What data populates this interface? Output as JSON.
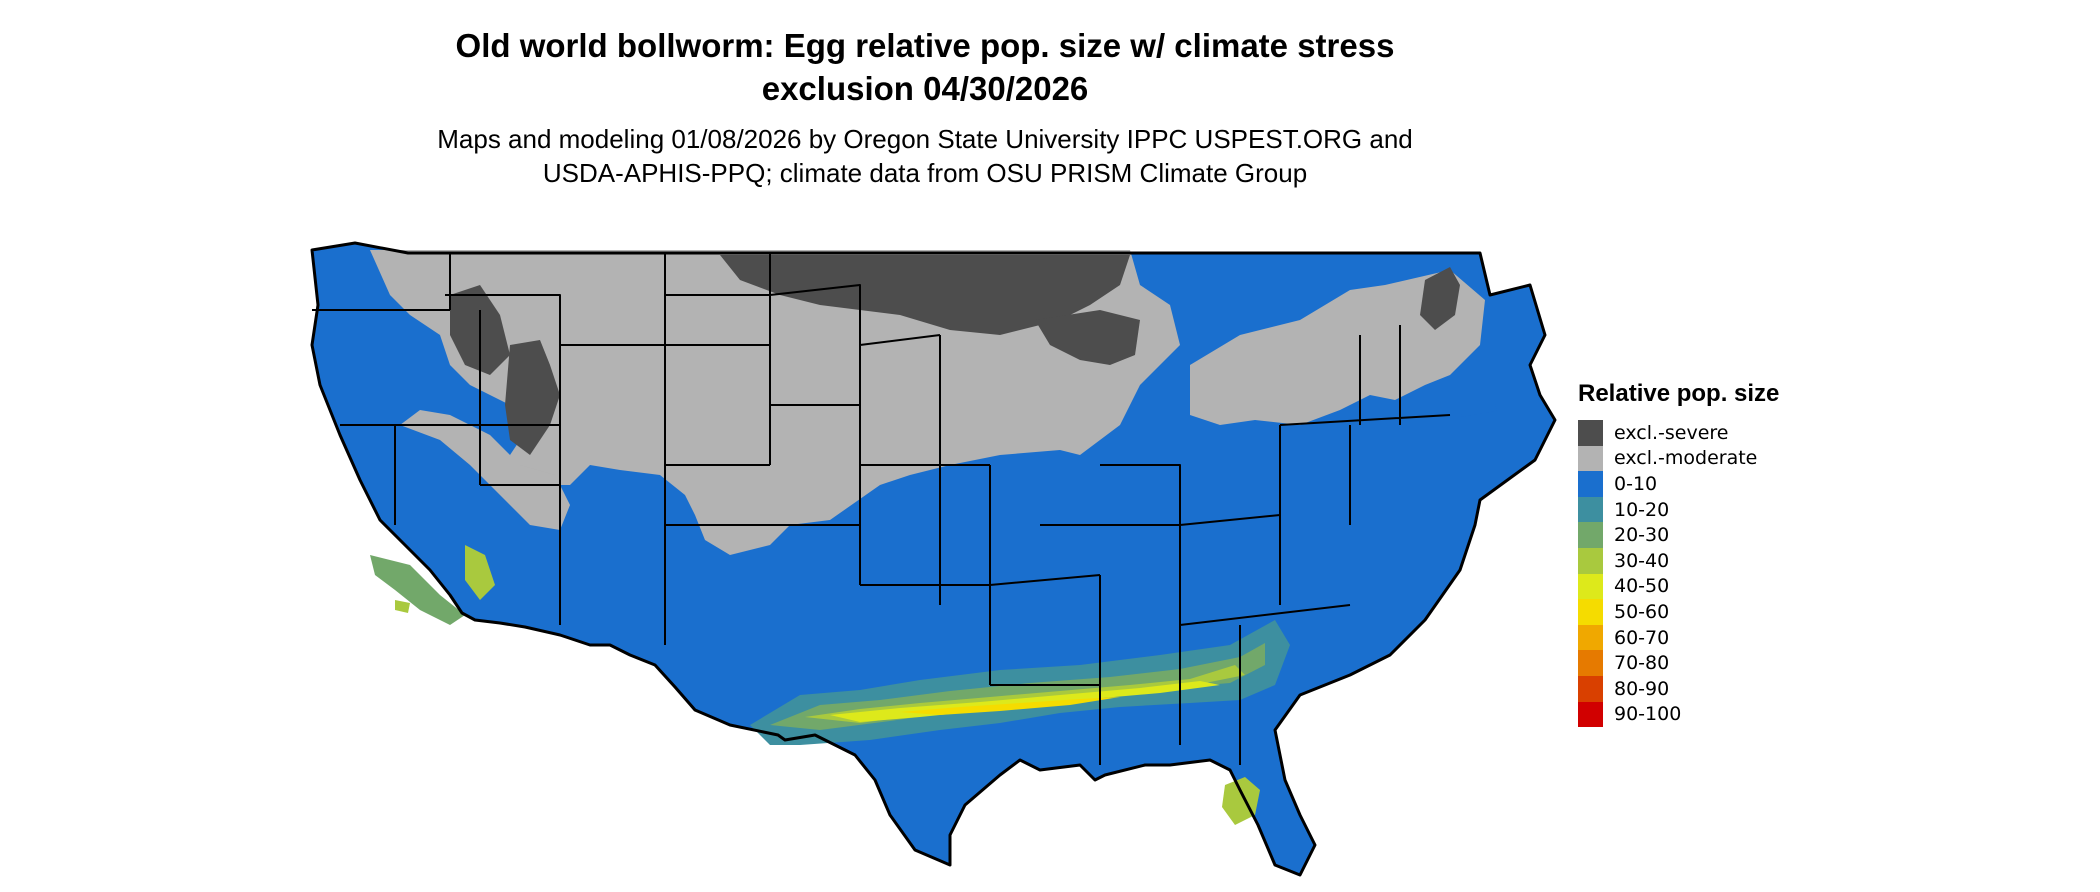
{
  "title": {
    "line1": "Old world bollworm: Egg relative pop. size w/ climate stress",
    "line2": "exclusion 04/30/2026"
  },
  "subtitle": {
    "line1": "Maps and modeling 01/08/2026 by Oregon State University IPPC USPEST.ORG and",
    "line2": "USDA-APHIS-PPQ; climate data from OSU PRISM Climate Group"
  },
  "legend": {
    "title": "Relative pop. size",
    "items": [
      {
        "label": "excl.-severe",
        "color": "#4d4d4d"
      },
      {
        "label": "excl.-moderate",
        "color": "#b3b3b3"
      },
      {
        "label": "0-10",
        "color": "#1a6fce"
      },
      {
        "label": "10-20",
        "color": "#3d8fa0"
      },
      {
        "label": "20-30",
        "color": "#72a86a"
      },
      {
        "label": "30-40",
        "color": "#a9c93e"
      },
      {
        "label": "40-50",
        "color": "#dde91b"
      },
      {
        "label": "50-60",
        "color": "#f5dc00"
      },
      {
        "label": "60-70",
        "color": "#f0a800"
      },
      {
        "label": "70-80",
        "color": "#e67a00"
      },
      {
        "label": "80-90",
        "color": "#d94000"
      },
      {
        "label": "90-100",
        "color": "#d10000"
      }
    ]
  },
  "map": {
    "region": "contiguous-united-states",
    "background_class_color": "#1a6fce",
    "state_border_color": "#000000"
  }
}
